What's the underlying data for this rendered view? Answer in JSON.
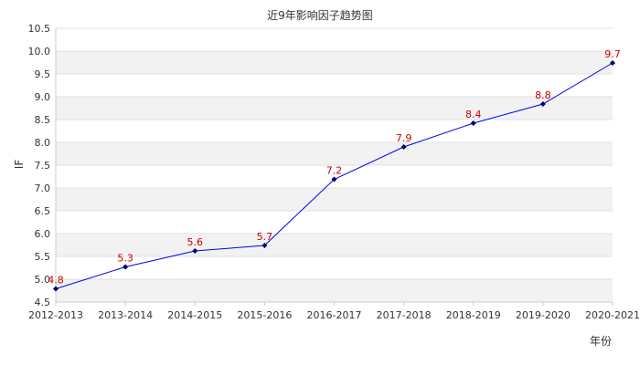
{
  "chart_data": {
    "type": "line",
    "title": "近9年影响因子趋势图",
    "xlabel": "年份",
    "ylabel": "IF",
    "categories": [
      "2012-2013",
      "2013-2014",
      "2014-2015",
      "2015-2016",
      "2016-2017",
      "2017-2018",
      "2018-2019",
      "2019-2020",
      "2020-2021"
    ],
    "values": [
      4.79,
      5.27,
      5.62,
      5.74,
      7.19,
      7.9,
      8.42,
      8.84,
      9.74
    ],
    "data_labels": [
      "4.8",
      "5.3",
      "5.6",
      "5.7",
      "7.2",
      "7.9",
      "8.4",
      "8.8",
      "9.7"
    ],
    "ylim": [
      4.5,
      10.5
    ],
    "y_ticks": [
      "4.5",
      "5.0",
      "5.5",
      "6.0",
      "6.5",
      "7.0",
      "7.5",
      "8.0",
      "8.5",
      "9.0",
      "9.5",
      "10.0",
      "10.5"
    ],
    "grid": "horizontal alternating bands",
    "legend": "none",
    "colors": {
      "line": "#0000ee",
      "marker": "#000066",
      "data_label": "#cc0000",
      "band": "#f2f2f2",
      "grid": "#e0e0e0",
      "axis": "#cccccc"
    }
  }
}
